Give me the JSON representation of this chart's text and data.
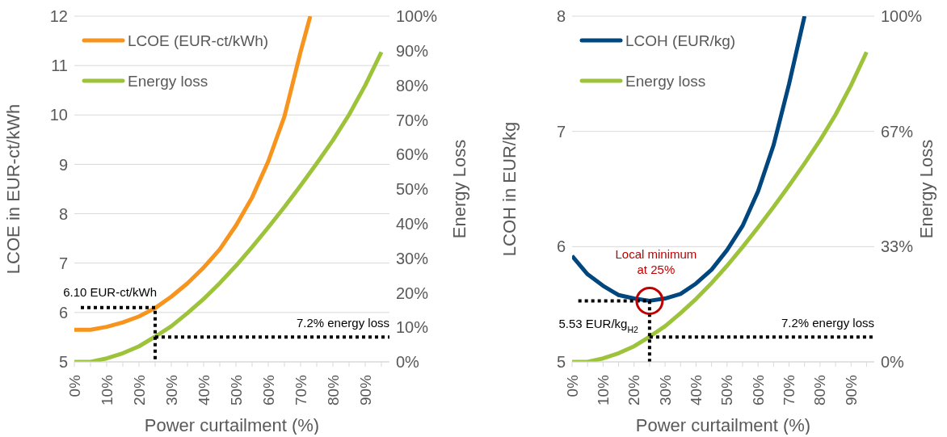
{
  "chart_data": [
    {
      "type": "line",
      "x": [
        0,
        5,
        10,
        15,
        20,
        25,
        30,
        35,
        40,
        45,
        50,
        55,
        60,
        65,
        70,
        75,
        80,
        85,
        90,
        95
      ],
      "xlabel": "Power curtailment (%)",
      "ylabel": "LCOE in EUR-ct/kWh",
      "y2label": "Energy Loss",
      "xlim": [
        0,
        97.5
      ],
      "xticks": [
        {
          "value": 0,
          "label": "0%"
        },
        {
          "value": 5,
          "label": null
        },
        {
          "value": 10,
          "label": "10%"
        },
        {
          "value": 15,
          "label": null
        },
        {
          "value": 20,
          "label": "20%"
        },
        {
          "value": 25,
          "label": null
        },
        {
          "value": 30,
          "label": "30%"
        },
        {
          "value": 35,
          "label": null
        },
        {
          "value": 40,
          "label": "40%"
        },
        {
          "value": 45,
          "label": null
        },
        {
          "value": 50,
          "label": "50%"
        },
        {
          "value": 55,
          "label": null
        },
        {
          "value": 60,
          "label": "60%"
        },
        {
          "value": 65,
          "label": null
        },
        {
          "value": 70,
          "label": "70%"
        },
        {
          "value": 75,
          "label": null
        },
        {
          "value": 80,
          "label": "80%"
        },
        {
          "value": 85,
          "label": null
        },
        {
          "value": 90,
          "label": "90%"
        },
        {
          "value": 95,
          "label": null
        }
      ],
      "ylim": [
        5,
        12
      ],
      "yticks": [
        5,
        6,
        7,
        8,
        9,
        10,
        11,
        12
      ],
      "y2lim": [
        0,
        100
      ],
      "y2ticks": [
        {
          "value": 0,
          "label": "0%"
        },
        {
          "value": 10,
          "label": "10%"
        },
        {
          "value": 20,
          "label": "20%"
        },
        {
          "value": 30,
          "label": "30%"
        },
        {
          "value": 40,
          "label": "40%"
        },
        {
          "value": 50,
          "label": "50%"
        },
        {
          "value": 60,
          "label": "60%"
        },
        {
          "value": 70,
          "label": "70%"
        },
        {
          "value": 80,
          "label": "80%"
        },
        {
          "value": 90,
          "label": "90%"
        },
        {
          "value": 100,
          "label": "100%"
        }
      ],
      "grid": "y",
      "legend": "top left",
      "marker": "none",
      "line_style": "solid",
      "series": [
        {
          "name": "LCOE (EUR-ct/kWh)",
          "color": "#f7941d",
          "x": [
            0,
            5,
            10,
            15,
            20,
            25,
            30,
            35,
            40,
            45,
            50,
            55,
            60,
            65,
            70,
            73
          ],
          "values": [
            5.65,
            5.65,
            5.71,
            5.8,
            5.92,
            6.09,
            6.32,
            6.59,
            6.91,
            7.28,
            7.76,
            8.33,
            9.06,
            9.97,
            11.28,
            12
          ]
        },
        {
          "name": "Energy loss",
          "color": "#9dc33b",
          "axis": "y2",
          "values": [
            0,
            0,
            1,
            2.5,
            4.5,
            7.3,
            10.3,
            14.1,
            18.2,
            22.8,
            27.8,
            33.2,
            38.9,
            44.8,
            51,
            57.4,
            64.1,
            71.5,
            80,
            89.6
          ]
        },
        {
          "color": "#000000",
          "line_style": "dotted",
          "x": [
            2,
            25,
            25
          ],
          "values": [
            6.1,
            6.1,
            5
          ]
        },
        {
          "color": "#000000",
          "line_style": "dotted",
          "axis": "y2",
          "x": [
            25,
            97.5
          ],
          "values": [
            7.2,
            7.2
          ]
        }
      ],
      "annotations": [
        "6.10 EUR-ct/kWh",
        "7.2% energy loss"
      ]
    },
    {
      "type": "line",
      "x": [
        0,
        5,
        10,
        15,
        20,
        25,
        30,
        35,
        40,
        45,
        50,
        55,
        60,
        65,
        70,
        75,
        80,
        85,
        90,
        95
      ],
      "xlabel": "Power curtailment (%)",
      "ylabel": "LCOH in EUR/kg",
      "y2label": "Energy Loss",
      "xlim": [
        0,
        97.5
      ],
      "xticks": [
        {
          "value": 0,
          "label": "0%"
        },
        {
          "value": 5,
          "label": null
        },
        {
          "value": 10,
          "label": "10%"
        },
        {
          "value": 15,
          "label": null
        },
        {
          "value": 20,
          "label": "20%"
        },
        {
          "value": 25,
          "label": null
        },
        {
          "value": 30,
          "label": "30%"
        },
        {
          "value": 35,
          "label": null
        },
        {
          "value": 40,
          "label": "40%"
        },
        {
          "value": 45,
          "label": null
        },
        {
          "value": 50,
          "label": "50%"
        },
        {
          "value": 55,
          "label": null
        },
        {
          "value": 60,
          "label": "60%"
        },
        {
          "value": 65,
          "label": null
        },
        {
          "value": 70,
          "label": "70%"
        },
        {
          "value": 75,
          "label": null
        },
        {
          "value": 80,
          "label": "80%"
        },
        {
          "value": 85,
          "label": null
        },
        {
          "value": 90,
          "label": "90%"
        },
        {
          "value": 95,
          "label": null
        }
      ],
      "ylim": [
        5,
        8
      ],
      "yticks": [
        5,
        6,
        7,
        8
      ],
      "y2lim": [
        0,
        100
      ],
      "y2ticks": [
        {
          "value": 0,
          "label": "0%"
        },
        {
          "value": 33.33,
          "label": "33%"
        },
        {
          "value": 66.67,
          "label": "67%"
        },
        {
          "value": 100,
          "label": "100%"
        }
      ],
      "grid": "y",
      "legend": "top left",
      "marker": "none",
      "line_style": "solid",
      "series": [
        {
          "name": "LCOH (EUR/kg)",
          "color": "#00467f",
          "x": [
            0,
            5,
            10,
            15,
            20,
            25,
            30,
            35,
            40,
            45,
            50,
            55,
            60,
            65,
            70,
            75
          ],
          "values": [
            5.92,
            5.76,
            5.66,
            5.58,
            5.55,
            5.53,
            5.55,
            5.59,
            5.68,
            5.8,
            5.97,
            6.18,
            6.48,
            6.88,
            7.41,
            8
          ]
        },
        {
          "name": "Energy loss",
          "color": "#9dc33b",
          "axis": "y2",
          "values": [
            0,
            0,
            1,
            2.5,
            4.5,
            7.3,
            10.3,
            14.1,
            18.2,
            22.8,
            27.8,
            33.2,
            38.9,
            44.8,
            51,
            57.4,
            64.1,
            71.5,
            80,
            89.6
          ]
        },
        {
          "color": "#000000",
          "line_style": "dotted",
          "x": [
            2,
            25,
            25
          ],
          "values": [
            5.53,
            5.53,
            5
          ]
        },
        {
          "color": "#000000",
          "line_style": "dotted",
          "axis": "y2",
          "x": [
            25,
            97.5
          ],
          "values": [
            7.2,
            7.2
          ]
        }
      ],
      "annotations": [
        "Local minimum at 25%",
        "5.53 EUR/kg$_{H2}$",
        "7.2% energy loss"
      ]
    }
  ]
}
